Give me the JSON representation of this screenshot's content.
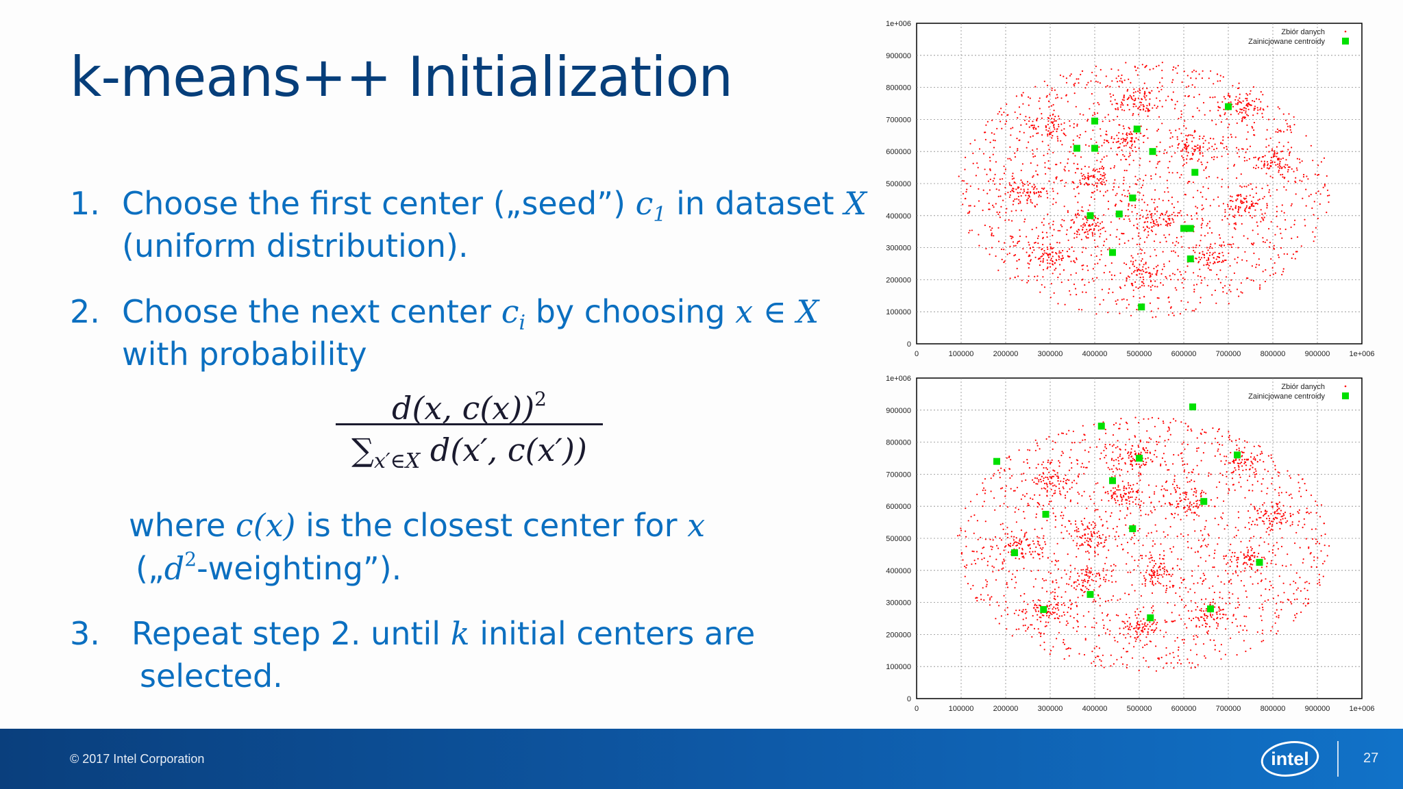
{
  "slide": {
    "title": "k-means++ Initialization",
    "steps": [
      {
        "number": "1.",
        "line1_a": "Choose the first center („seed”) ",
        "line1_var": "c",
        "line1_sub": "1",
        "line1_b": " in dataset ",
        "line1_set": "X",
        "line2": "(uniform distribution)."
      },
      {
        "number": "2.",
        "line1_a": "Choose the next center ",
        "line1_var": "c",
        "line1_sub": "i",
        "line1_b": " by choosing ",
        "line1_expr": "x ∈ X",
        "line2": "with probability",
        "where_a": "where ",
        "where_expr": "c(x)",
        "where_b": " is the closest center for ",
        "where_var": "x",
        "weight_a": "(„",
        "weight_var": "d",
        "weight_sup": "2",
        "weight_b": "-weighting”)."
      },
      {
        "number": "3.",
        "line1_a": "Repeat step 2. until ",
        "line1_var": "k",
        "line1_b": " initial centers are",
        "line2": "selected."
      }
    ],
    "formula": {
      "numerator": "d(x, c(x))",
      "numerator_sup": "2",
      "denominator_sum": "∑",
      "denominator_sub": "x′∈X",
      "denominator_body": " d(x′, c(x′))"
    }
  },
  "footer": {
    "copyright": "© 2017 Intel Corporation",
    "logo_text": "intel",
    "page_number": "27"
  },
  "colors": {
    "title": "#063e7a",
    "body_text": "#0b6fc0",
    "footer_bg": "#0e5aa8",
    "data_points": "#ff0000",
    "centroids": "#00e000"
  },
  "chart_data": [
    {
      "type": "scatter",
      "xlim": [
        0,
        1000000
      ],
      "ylim": [
        0,
        1000000
      ],
      "x_ticks": [
        "0",
        "100000",
        "200000",
        "300000",
        "400000",
        "500000",
        "600000",
        "700000",
        "800000",
        "900000",
        "1e+006"
      ],
      "y_ticks": [
        "0",
        "100000",
        "200000",
        "300000",
        "400000",
        "500000",
        "600000",
        "700000",
        "800000",
        "900000",
        "1e+006"
      ],
      "grid": true,
      "legend_position": "top-right",
      "series": [
        {
          "name": "Zbiór danych",
          "color": "#ff0000",
          "marker": "dot"
        },
        {
          "name": "Zainicjowane centroidy",
          "color": "#00e000",
          "marker": "square",
          "points": [
            [
              400000,
              695000
            ],
            [
              360000,
              610000
            ],
            [
              400000,
              610000
            ],
            [
              495000,
              670000
            ],
            [
              530000,
              600000
            ],
            [
              700000,
              740000
            ],
            [
              625000,
              535000
            ],
            [
              485000,
              455000
            ],
            [
              455000,
              405000
            ],
            [
              390000,
              400000
            ],
            [
              600000,
              360000
            ],
            [
              615000,
              360000
            ],
            [
              440000,
              285000
            ],
            [
              615000,
              265000
            ],
            [
              505000,
              115000
            ]
          ]
        }
      ],
      "clusters": [
        [
          240000,
          470000
        ],
        [
          300000,
          275000
        ],
        [
          300000,
          680000
        ],
        [
          390000,
          515000
        ],
        [
          385000,
          370000
        ],
        [
          500000,
          760000
        ],
        [
          470000,
          635000
        ],
        [
          540000,
          390000
        ],
        [
          620000,
          610000
        ],
        [
          730000,
          740000
        ],
        [
          800000,
          570000
        ],
        [
          740000,
          430000
        ],
        [
          660000,
          270000
        ],
        [
          510000,
          220000
        ]
      ]
    },
    {
      "type": "scatter",
      "xlim": [
        0,
        1000000
      ],
      "ylim": [
        0,
        1000000
      ],
      "x_ticks": [
        "0",
        "100000",
        "200000",
        "300000",
        "400000",
        "500000",
        "600000",
        "700000",
        "800000",
        "900000",
        "1e+006"
      ],
      "y_ticks": [
        "0",
        "100000",
        "200000",
        "300000",
        "400000",
        "500000",
        "600000",
        "700000",
        "800000",
        "900000",
        "1e+006"
      ],
      "grid": true,
      "legend_position": "top-right",
      "series": [
        {
          "name": "Zbiór danych",
          "color": "#ff0000",
          "marker": "dot"
        },
        {
          "name": "Zainicjowane centroidy",
          "color": "#00e000",
          "marker": "square",
          "points": [
            [
              180000,
              740000
            ],
            [
              415000,
              850000
            ],
            [
              620000,
              910000
            ],
            [
              720000,
              760000
            ],
            [
              500000,
              750000
            ],
            [
              440000,
              680000
            ],
            [
              645000,
              615000
            ],
            [
              290000,
              575000
            ],
            [
              485000,
              530000
            ],
            [
              220000,
              455000
            ],
            [
              770000,
              425000
            ],
            [
              390000,
              325000
            ],
            [
              285000,
              278000
            ],
            [
              525000,
              252000
            ],
            [
              660000,
              280000
            ]
          ]
        }
      ],
      "clusters": [
        [
          240000,
          470000
        ],
        [
          300000,
          275000
        ],
        [
          300000,
          680000
        ],
        [
          390000,
          515000
        ],
        [
          385000,
          370000
        ],
        [
          500000,
          760000
        ],
        [
          470000,
          635000
        ],
        [
          540000,
          390000
        ],
        [
          620000,
          610000
        ],
        [
          730000,
          740000
        ],
        [
          800000,
          570000
        ],
        [
          740000,
          430000
        ],
        [
          660000,
          270000
        ],
        [
          510000,
          220000
        ]
      ]
    }
  ]
}
